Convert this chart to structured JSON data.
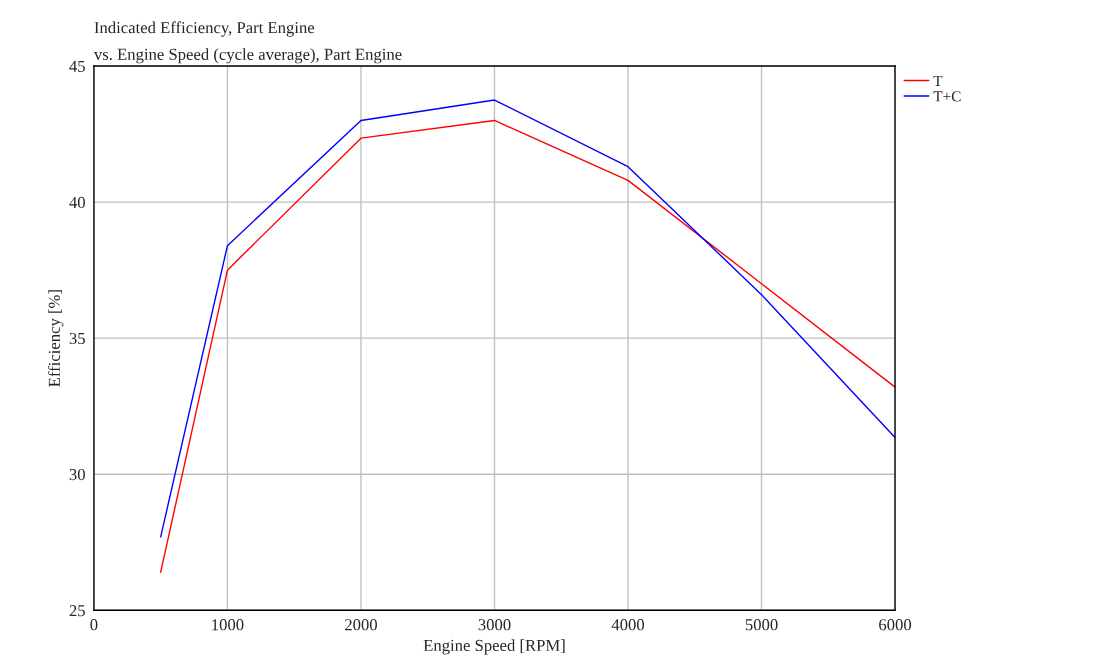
{
  "chart_data": {
    "type": "line",
    "title": "Indicated Efficiency, Part Engine",
    "subtitle": "vs. Engine Speed (cycle average), Part Engine",
    "xlabel": "Engine Speed [RPM]",
    "ylabel": "Efficiency [%]",
    "x": [
      500,
      1000,
      2000,
      3000,
      4000,
      5000,
      6000
    ],
    "series": [
      {
        "name": "T",
        "color": "#ff0000",
        "values": [
          26.4,
          37.5,
          42.35,
          43.0,
          40.8,
          37.0,
          33.2
        ]
      },
      {
        "name": "T+C",
        "color": "#0000ff",
        "values": [
          27.7,
          38.4,
          43.0,
          43.75,
          41.3,
          36.6,
          31.35
        ]
      }
    ],
    "xlim": [
      0,
      6000
    ],
    "xticks": [
      0,
      1000,
      2000,
      3000,
      4000,
      5000,
      6000
    ],
    "ylim": [
      25,
      45
    ],
    "yticks": [
      25,
      30,
      35,
      40,
      45
    ],
    "grid": true,
    "legend": "top right",
    "marker": "none",
    "line_style": "solid"
  }
}
